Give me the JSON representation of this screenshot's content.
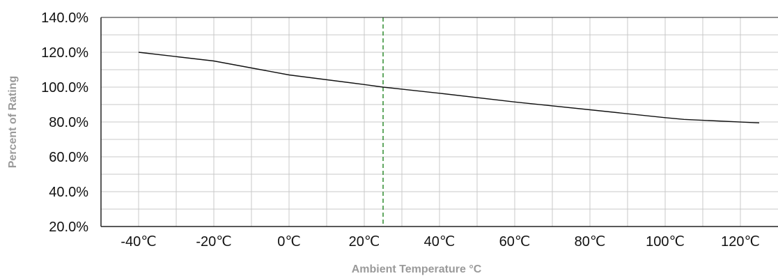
{
  "colors": {
    "curve": "#111111",
    "reference_line": "#2e8b2e",
    "grid": "#c8c8c8",
    "axis": "#222222",
    "axis_label": "#9a9a9a"
  },
  "chart_data": {
    "type": "line",
    "title": "",
    "xlabel": "Ambient Temperature °C",
    "ylabel": "Percent of Rating",
    "xlim": [
      -50,
      130
    ],
    "ylim": [
      20,
      140
    ],
    "x_ticks": [
      -40,
      -20,
      0,
      20,
      40,
      60,
      80,
      100,
      120
    ],
    "x_tick_labels": [
      "-40℃",
      "-20℃",
      "0℃",
      "20℃",
      "40℃",
      "60℃",
      "80℃",
      "100℃",
      "120℃"
    ],
    "y_ticks": [
      20,
      40,
      60,
      80,
      100,
      120,
      140
    ],
    "y_tick_labels": [
      "20.0%",
      "40.0%",
      "60.0%",
      "80.0%",
      "100.0%",
      "120.0%",
      "140.0%"
    ],
    "grid": true,
    "series": [
      {
        "x": [
          -40,
          -20,
          -10,
          0,
          20,
          25,
          40,
          60,
          80,
          100,
          105,
          125
        ],
        "y": [
          120,
          115,
          111,
          107,
          101.5,
          100,
          96.5,
          91.5,
          87,
          82.5,
          81.5,
          79.5
        ]
      }
    ],
    "reference_line": {
      "x": 25,
      "style": "dashed"
    }
  }
}
